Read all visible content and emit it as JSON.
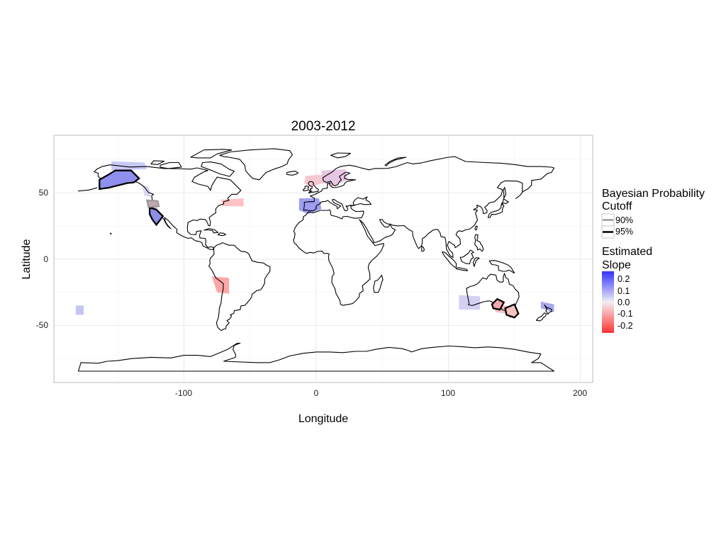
{
  "title": "2003-2012",
  "x_axis": {
    "label": "Longitude",
    "ticks": [
      "-100",
      "0",
      "100",
      "200"
    ],
    "range": [
      -200,
      210
    ]
  },
  "y_axis": {
    "label": "Latitude",
    "ticks": [
      "50",
      "0",
      "-50"
    ],
    "range": [
      -93,
      93
    ]
  },
  "legend_cutoff": {
    "title_line1": "Bayesian Probability",
    "title_line2": "Cutoff",
    "items": [
      {
        "label": "90%",
        "color": "#9a9a9a"
      },
      {
        "label": "95%",
        "color": "#000000"
      }
    ]
  },
  "legend_slope": {
    "title_line1": "Estimated",
    "title_line2": "Slope",
    "labels": [
      "0.2",
      "0.1",
      "0.0",
      "-0.1",
      "-0.2"
    ],
    "high_color": "#3333ff",
    "mid_color": "#f2eef2",
    "low_color": "#ff3333"
  },
  "colors": {
    "panel_border": "#bdbdbd",
    "grid": "#e4e4e4"
  }
}
